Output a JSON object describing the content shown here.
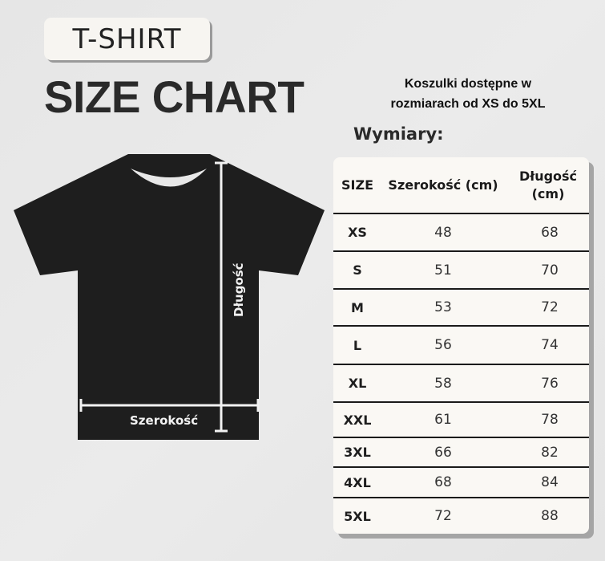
{
  "badge": "T-SHIRT",
  "title": "SIZE CHART",
  "availability": [
    "Koszulki dostępne w",
    "rozmiarach od XS do 5XL"
  ],
  "dimensions_heading": "Wymiary:",
  "shirt": {
    "length_label": "Długość",
    "width_label": "Szerokość",
    "color": "#1e1e1e"
  },
  "table": {
    "headers": [
      "SIZE",
      "Szerokość (cm)",
      "Długość (cm)"
    ],
    "rows": [
      [
        "XS",
        "48",
        "68"
      ],
      [
        "S",
        "51",
        "70"
      ],
      [
        "M",
        "53",
        "72"
      ],
      [
        "L",
        "56",
        "74"
      ],
      [
        "XL",
        "58",
        "76"
      ],
      [
        "XXL",
        "61",
        "78"
      ],
      [
        "3XL",
        "66",
        "82"
      ],
      [
        "4XL",
        "68",
        "84"
      ],
      [
        "5XL",
        "72",
        "88"
      ]
    ]
  }
}
